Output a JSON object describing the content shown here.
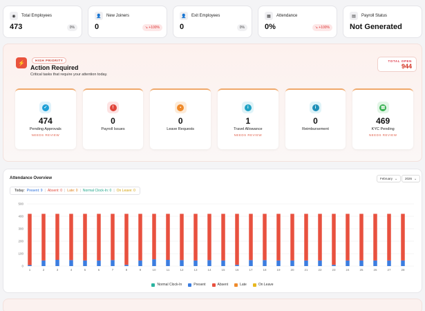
{
  "stats": [
    {
      "label": "Total Employees",
      "value": "473",
      "badge": "0%",
      "icon": "eye-icon",
      "glyph": "◉",
      "trend": "neutral"
    },
    {
      "label": "New Joiners",
      "value": "0",
      "badge": "↘ +100%",
      "icon": "user-plus-icon",
      "glyph": "👤",
      "trend": "down"
    },
    {
      "label": "Exit Employees",
      "value": "0",
      "badge": "0%",
      "icon": "user-minus-icon",
      "glyph": "👤",
      "trend": "neutral"
    },
    {
      "label": "Attendance",
      "value": "0%",
      "badge": "↘ +100%",
      "icon": "calendar-icon",
      "glyph": "▦",
      "trend": "down"
    },
    {
      "label": "Payroll Status",
      "value": "Not Generated",
      "badge": "",
      "icon": "document-icon",
      "glyph": "▤",
      "trend": "neutral"
    }
  ],
  "action": {
    "priority_badge": "HIGH PRIORITY",
    "title": "Action Required",
    "subtitle": "Critical tasks that require your attention today.",
    "total_label": "TOTAL OPEN",
    "total_value": "944",
    "tiles": [
      {
        "value": "474",
        "label": "Pending Approvals",
        "sub": "NEEDS REVIEW",
        "icon": "check-circle-icon",
        "glyph": "✓",
        "bg": "#dff2fb",
        "fg": "#1e9fd6"
      },
      {
        "value": "0",
        "label": "Payroll Issues",
        "sub": "",
        "icon": "alert-circle-icon",
        "glyph": "!",
        "bg": "#fde3e3",
        "fg": "#e0453a"
      },
      {
        "value": "0",
        "label": "Leave Requests",
        "sub": "",
        "icon": "calendar-icon",
        "glyph": "▪",
        "bg": "#fdebd8",
        "fg": "#ef8a2a"
      },
      {
        "value": "1",
        "label": "Travel Allowance",
        "sub": "NEEDS REVIEW",
        "icon": "info-circle-icon",
        "glyph": "i",
        "bg": "#dff3f8",
        "fg": "#1fa2c4"
      },
      {
        "value": "0",
        "label": "Reimbursement",
        "sub": "",
        "icon": "info-circle-icon",
        "glyph": "i",
        "bg": "#dff3f8",
        "fg": "#1f8fb8"
      },
      {
        "value": "469",
        "label": "KYC Pending",
        "sub": "NEEDS REVIEW",
        "icon": "document-icon",
        "glyph": "▤",
        "bg": "#e2f5e6",
        "fg": "#35b04f"
      }
    ]
  },
  "attendance": {
    "title": "Attendance Overview",
    "month": "February",
    "year": "2026",
    "today_label": "Today:",
    "today": [
      {
        "text": "Present: 9",
        "cls": "c-present"
      },
      {
        "text": "Absent: 0",
        "cls": "c-absent"
      },
      {
        "text": "Late: 0",
        "cls": "c-late"
      },
      {
        "text": "Normal Clock-In: 0",
        "cls": "c-normal"
      },
      {
        "text": "On Leave: 0",
        "cls": "c-leave"
      }
    ]
  },
  "chart_data": {
    "type": "bar",
    "stacked": true,
    "categories": [
      "1",
      "2",
      "3",
      "4",
      "5",
      "6",
      "7",
      "8",
      "9",
      "10",
      "11",
      "12",
      "13",
      "14",
      "15",
      "16",
      "17",
      "18",
      "19",
      "20",
      "21",
      "22",
      "23",
      "24",
      "25",
      "26",
      "27",
      "28"
    ],
    "ylim": [
      0,
      500
    ],
    "yticks": [
      0,
      100,
      200,
      300,
      400,
      500
    ],
    "grid": true,
    "legend_position": "bottom",
    "series": [
      {
        "name": "Normal Clock-In",
        "color": "#2bb3a0",
        "values": [
          0,
          0,
          0,
          0,
          0,
          0,
          0,
          0,
          0,
          0,
          0,
          0,
          0,
          0,
          0,
          0,
          0,
          0,
          0,
          0,
          0,
          0,
          0,
          0,
          0,
          0,
          0,
          0
        ]
      },
      {
        "name": "Present",
        "color": "#3b7de0",
        "values": [
          8,
          45,
          50,
          48,
          45,
          45,
          48,
          10,
          45,
          55,
          50,
          48,
          45,
          48,
          45,
          10,
          48,
          48,
          45,
          45,
          45,
          45,
          10,
          45,
          45,
          45,
          45,
          45
        ]
      },
      {
        "name": "Absent",
        "color": "#e8513f",
        "values": [
          412,
          375,
          370,
          372,
          375,
          375,
          372,
          410,
          375,
          365,
          370,
          372,
          375,
          372,
          375,
          410,
          372,
          372,
          375,
          375,
          375,
          375,
          410,
          375,
          375,
          375,
          375,
          375
        ]
      },
      {
        "name": "Late",
        "color": "#ef8b2c",
        "values": [
          0,
          0,
          0,
          0,
          0,
          0,
          0,
          0,
          0,
          0,
          0,
          0,
          0,
          0,
          0,
          0,
          0,
          0,
          0,
          0,
          0,
          0,
          0,
          0,
          0,
          0,
          0,
          0
        ]
      },
      {
        "name": "On Leave",
        "color": "#e8b820",
        "values": [
          0,
          0,
          0,
          0,
          0,
          0,
          0,
          0,
          0,
          0,
          0,
          0,
          0,
          0,
          0,
          0,
          0,
          0,
          0,
          0,
          0,
          0,
          0,
          0,
          0,
          0,
          0,
          0
        ]
      }
    ]
  }
}
